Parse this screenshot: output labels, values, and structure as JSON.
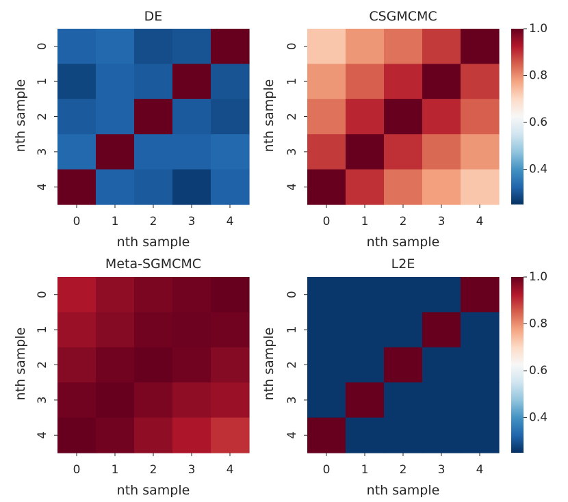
{
  "colorscale": {
    "name": "RdBu_r",
    "vmin": 0.25,
    "vmax": 1.0,
    "stops": [
      "#053061",
      "#2166ac",
      "#4393c3",
      "#92c5de",
      "#d1e5f0",
      "#f7f7f7",
      "#fddbc7",
      "#f4a582",
      "#d6604d",
      "#b2182b",
      "#67001f"
    ],
    "ticks": [
      0.4,
      0.6,
      0.8,
      1.0
    ],
    "tick_labels": [
      "0.4",
      "0.6",
      "0.8",
      "1.0"
    ]
  },
  "chart_data": [
    {
      "type": "heatmap",
      "title": "DE",
      "xlabel": "nth sample",
      "ylabel": "nth sample",
      "x_ticks": [
        "0",
        "1",
        "2",
        "3",
        "4"
      ],
      "y_ticks": [
        "0",
        "1",
        "2",
        "3",
        "4"
      ],
      "values": [
        [
          0.32,
          0.33,
          0.29,
          0.3,
          1.0
        ],
        [
          0.28,
          0.32,
          0.31,
          1.0,
          0.3
        ],
        [
          0.31,
          0.32,
          1.0,
          0.31,
          0.29
        ],
        [
          0.33,
          1.0,
          0.32,
          0.32,
          0.33
        ],
        [
          1.0,
          0.32,
          0.31,
          0.27,
          0.32
        ]
      ]
    },
    {
      "type": "heatmap",
      "title": "CSGMCMC",
      "xlabel": "nth sample",
      "ylabel": "nth sample",
      "x_ticks": [
        "0",
        "1",
        "2",
        "3",
        "4"
      ],
      "y_ticks": [
        "0",
        "1",
        "2",
        "3",
        "4"
      ],
      "values": [
        [
          0.73,
          0.79,
          0.83,
          0.89,
          1.0
        ],
        [
          0.79,
          0.85,
          0.91,
          1.0,
          0.89
        ],
        [
          0.83,
          0.91,
          1.0,
          0.91,
          0.85
        ],
        [
          0.89,
          1.0,
          0.9,
          0.84,
          0.79
        ],
        [
          1.0,
          0.9,
          0.83,
          0.78,
          0.73
        ]
      ]
    },
    {
      "type": "heatmap",
      "title": "Meta-SGMCMC",
      "xlabel": "nth sample",
      "ylabel": "nth sample",
      "x_ticks": [
        "0",
        "1",
        "2",
        "3",
        "4"
      ],
      "y_ticks": [
        "0",
        "1",
        "2",
        "3",
        "4"
      ],
      "values": [
        [
          0.93,
          0.96,
          0.98,
          0.99,
          1.0
        ],
        [
          0.95,
          0.97,
          0.99,
          0.995,
          0.99
        ],
        [
          0.97,
          0.99,
          1.0,
          0.99,
          0.97
        ],
        [
          0.99,
          1.0,
          0.98,
          0.96,
          0.95
        ],
        [
          1.0,
          0.99,
          0.96,
          0.93,
          0.9
        ]
      ]
    },
    {
      "type": "heatmap",
      "title": "L2E",
      "xlabel": "nth sample",
      "ylabel": "nth sample",
      "x_ticks": [
        "0",
        "1",
        "2",
        "3",
        "4"
      ],
      "y_ticks": [
        "0",
        "1",
        "2",
        "3",
        "4"
      ],
      "values": [
        [
          0.26,
          0.26,
          0.26,
          0.26,
          1.0
        ],
        [
          0.26,
          0.26,
          0.26,
          1.0,
          0.26
        ],
        [
          0.26,
          0.26,
          1.0,
          0.26,
          0.26
        ],
        [
          0.26,
          1.0,
          0.26,
          0.26,
          0.26
        ],
        [
          1.0,
          0.26,
          0.26,
          0.26,
          0.26
        ]
      ]
    }
  ]
}
